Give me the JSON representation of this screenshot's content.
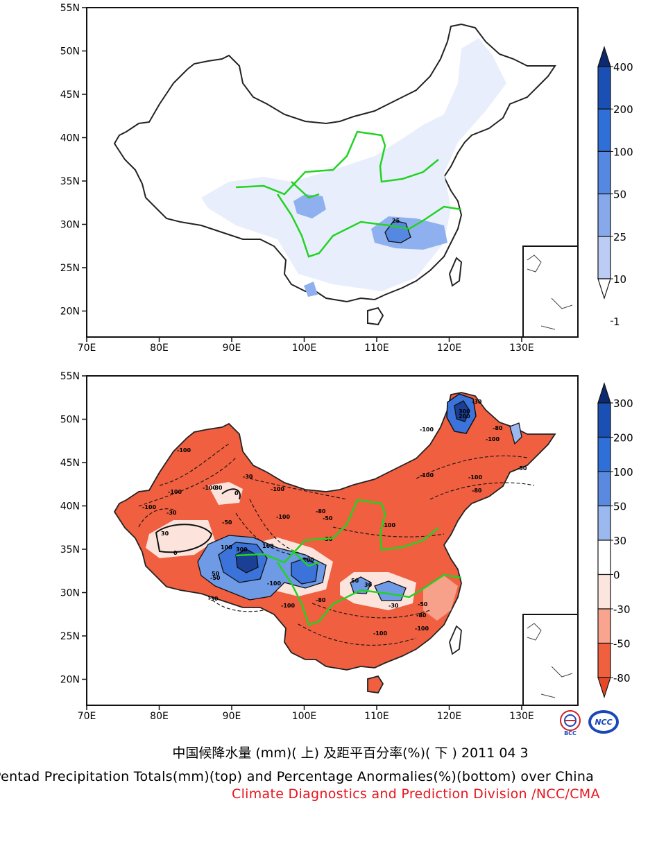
{
  "maps": [
    {
      "id": "precipitation-totals",
      "lat_ticks": [
        "55N",
        "50N",
        "45N",
        "40N",
        "35N",
        "30N",
        "25N",
        "20N"
      ],
      "lon_ticks": [
        "70E",
        "80E",
        "90E",
        "100E",
        "110E",
        "120E",
        "130E"
      ],
      "legend_labels": [
        "400",
        "200",
        "100",
        "50",
        "25",
        "10",
        "1"
      ],
      "legend_colors": [
        "#0d2a6e",
        "#1a4fb4",
        "#2f6fd8",
        "#5588e0",
        "#88a8ec",
        "#bccdf5",
        "#ffffff"
      ],
      "contour_labels": [
        "25"
      ]
    },
    {
      "id": "percentage-anomalies",
      "lat_ticks": [
        "55N",
        "50N",
        "45N",
        "40N",
        "35N",
        "30N",
        "25N",
        "20N"
      ],
      "lon_ticks": [
        "70E",
        "80E",
        "90E",
        "100E",
        "110E",
        "120E",
        "130E"
      ],
      "legend_labels": [
        "300",
        "200",
        "100",
        "50",
        "30",
        "0",
        "-30",
        "-50",
        "-80"
      ],
      "legend_colors": [
        "#0d2a6e",
        "#1a4fb4",
        "#2f6fd8",
        "#5a8ae0",
        "#9bb8ef",
        "#ffffff",
        "#fde5df",
        "#f9a48e",
        "#f0603f",
        "#e8482a"
      ],
      "contour_labels": [
        "-100",
        "-80",
        "-50",
        "-30",
        "0",
        "30",
        "50",
        "100",
        "200",
        "300"
      ]
    }
  ],
  "river_color": "#22d322",
  "logos": [
    "BCC",
    "NCC"
  ],
  "caption_cn": "中国候降水量 (mm)( 上) 及距平百分率(%)( 下 ) 2011 04 3",
  "caption_en": "Pentad Precipitation Totals(mm)(top) and Percentage Anormalies(%)(bottom) over China",
  "credit": "Climate Diagnostics and Prediction Division /NCC/CMA"
}
